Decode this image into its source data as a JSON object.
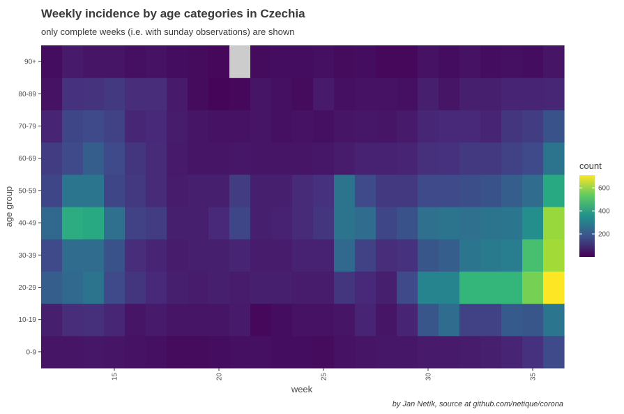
{
  "chart_data": {
    "type": "heatmap",
    "title": "Weekly incidence by age categories in Czechia",
    "subtitle": "only complete weeks (i.e. with sunday observations) are shown",
    "caption": "by Jan Netík, source at github.com/netique/corona",
    "xlabel": "week",
    "ylabel": "age group",
    "x": [
      12,
      13,
      14,
      15,
      16,
      17,
      18,
      19,
      20,
      21,
      22,
      23,
      24,
      25,
      26,
      27,
      28,
      29,
      30,
      31,
      32,
      33,
      34,
      35,
      36
    ],
    "x_ticks": [
      15,
      20,
      25,
      30,
      35
    ],
    "y": [
      "0-9",
      "10-19",
      "20-29",
      "30-39",
      "40-49",
      "50-59",
      "60-69",
      "70-79",
      "80-89",
      "90+"
    ],
    "values": [
      [
        40,
        40,
        45,
        40,
        35,
        30,
        20,
        20,
        25,
        30,
        30,
        25,
        25,
        20,
        35,
        40,
        45,
        45,
        50,
        50,
        55,
        60,
        70,
        100,
        160
      ],
      [
        60,
        90,
        95,
        75,
        40,
        50,
        40,
        40,
        40,
        50,
        15,
        25,
        35,
        35,
        40,
        70,
        40,
        70,
        190,
        250,
        140,
        140,
        200,
        190,
        280
      ],
      [
        210,
        240,
        270,
        160,
        110,
        80,
        60,
        55,
        60,
        55,
        60,
        60,
        55,
        55,
        110,
        80,
        60,
        160,
        320,
        320,
        470,
        470,
        470,
        560,
        710
      ],
      [
        160,
        250,
        250,
        180,
        90,
        70,
        55,
        60,
        60,
        70,
        55,
        55,
        65,
        65,
        240,
        140,
        90,
        100,
        190,
        210,
        280,
        290,
        300,
        500,
        610
      ],
      [
        240,
        440,
        430,
        260,
        140,
        130,
        60,
        60,
        80,
        150,
        60,
        65,
        85,
        110,
        270,
        250,
        150,
        180,
        260,
        270,
        260,
        270,
        280,
        350,
        600
      ],
      [
        150,
        280,
        280,
        150,
        120,
        85,
        55,
        60,
        60,
        130,
        60,
        60,
        85,
        100,
        270,
        160,
        120,
        120,
        160,
        160,
        170,
        180,
        210,
        250,
        430
      ],
      [
        130,
        160,
        210,
        160,
        110,
        85,
        50,
        40,
        40,
        45,
        40,
        40,
        40,
        45,
        55,
        65,
        65,
        70,
        95,
        100,
        120,
        120,
        140,
        160,
        270
      ],
      [
        70,
        150,
        160,
        140,
        75,
        80,
        55,
        40,
        35,
        35,
        40,
        30,
        35,
        30,
        40,
        45,
        40,
        50,
        75,
        80,
        80,
        70,
        110,
        130,
        180
      ],
      [
        35,
        100,
        105,
        120,
        90,
        90,
        50,
        20,
        10,
        15,
        40,
        30,
        20,
        50,
        30,
        35,
        35,
        30,
        60,
        40,
        60,
        60,
        70,
        70,
        75
      ],
      [
        25,
        50,
        40,
        40,
        30,
        35,
        25,
        20,
        15,
        null,
        20,
        25,
        25,
        30,
        20,
        25,
        15,
        15,
        35,
        25,
        35,
        25,
        30,
        25,
        40
      ]
    ],
    "legend": {
      "title": "count",
      "ticks": [
        200,
        400,
        600
      ],
      "range": [
        0,
        710
      ],
      "placement": "right"
    },
    "na_color": "#cccccc",
    "grid": false
  }
}
